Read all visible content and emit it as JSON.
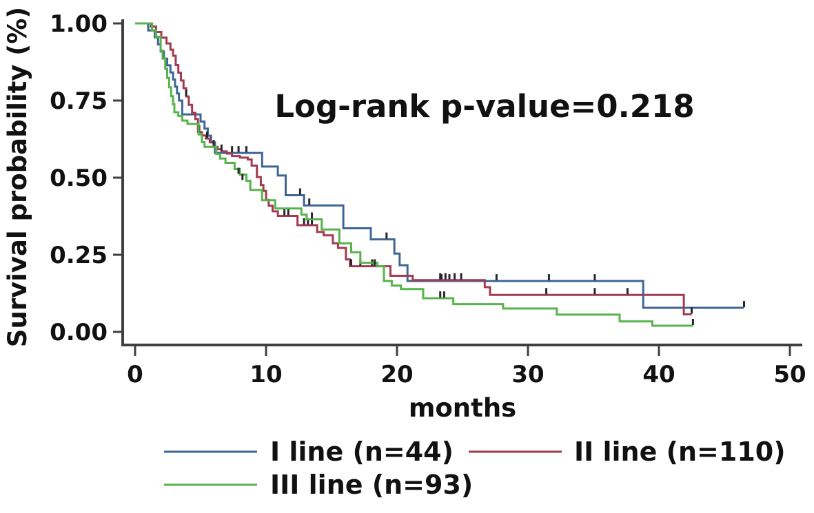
{
  "figure": {
    "kind": "kaplan-meier-survival-plot",
    "background": "#ffffff",
    "axis_color": "#3f3f3f",
    "text_color": "#111111",
    "censor_tick_color": "#26262b"
  },
  "chart_data": {
    "type": "line",
    "subtype": "kaplan-meier-step",
    "title": "",
    "xlabel": "months",
    "ylabel": "Survival probability (%)",
    "annotation": "Log-rank p-value=0.218",
    "xlim": [
      0,
      50
    ],
    "ylim": [
      0,
      1
    ],
    "x_ticks": [
      0,
      10,
      20,
      30,
      40,
      50
    ],
    "y_ticks": [
      "1.00",
      "0.75",
      "0.50",
      "0.25",
      "0.00"
    ],
    "y_tick_values": [
      1.0,
      0.75,
      0.5,
      0.25,
      0.0
    ],
    "grid": false,
    "legend_position": "bottom",
    "series": [
      {
        "name": "I line (n=44)",
        "n": 44,
        "color": "#3e6695",
        "steps": [
          [
            0,
            1
          ],
          [
            1.0,
            0.977
          ],
          [
            1.5,
            0.955
          ],
          [
            1.75,
            0.932
          ],
          [
            1.95,
            0.909
          ],
          [
            2.2,
            0.886
          ],
          [
            2.45,
            0.864
          ],
          [
            2.7,
            0.841
          ],
          [
            2.9,
            0.818
          ],
          [
            3.05,
            0.795
          ],
          [
            3.2,
            0.773
          ],
          [
            3.35,
            0.75
          ],
          [
            3.6,
            0.705
          ],
          [
            5.0,
            0.682
          ],
          [
            5.3,
            0.659
          ],
          [
            5.55,
            0.636
          ],
          [
            5.8,
            0.614
          ],
          [
            6.1,
            0.58
          ],
          [
            9.7,
            0.536
          ],
          [
            10.9,
            0.507
          ],
          [
            11.5,
            0.443
          ],
          [
            12.9,
            0.41
          ],
          [
            15.9,
            0.336
          ],
          [
            18.0,
            0.3
          ],
          [
            19.8,
            0.254
          ],
          [
            20.2,
            0.216
          ],
          [
            20.8,
            0.165
          ],
          [
            38.8,
            0.078
          ],
          [
            46.5,
            0.078
          ]
        ],
        "censor_marks": [
          [
            7.4,
            0.58
          ],
          [
            7.9,
            0.58
          ],
          [
            8.5,
            0.58
          ],
          [
            12.6,
            0.443
          ],
          [
            13.3,
            0.41
          ],
          [
            19.2,
            0.3
          ],
          [
            23.4,
            0.165
          ],
          [
            24.0,
            0.165
          ],
          [
            27.6,
            0.165
          ],
          [
            31.6,
            0.165
          ],
          [
            35.1,
            0.165
          ],
          [
            46.5,
            0.078
          ]
        ]
      },
      {
        "name": "II line (n=110)",
        "n": 110,
        "color": "#a23b50",
        "steps": [
          [
            0,
            1
          ],
          [
            1.2,
            0.99
          ],
          [
            1.6,
            0.972
          ],
          [
            2.0,
            0.954
          ],
          [
            2.4,
            0.935
          ],
          [
            2.7,
            0.915
          ],
          [
            2.9,
            0.895
          ],
          [
            3.1,
            0.865
          ],
          [
            3.3,
            0.84
          ],
          [
            3.5,
            0.815
          ],
          [
            3.7,
            0.79
          ],
          [
            3.9,
            0.763
          ],
          [
            4.1,
            0.736
          ],
          [
            4.35,
            0.71
          ],
          [
            4.6,
            0.69
          ],
          [
            4.8,
            0.648
          ],
          [
            5.1,
            0.637
          ],
          [
            5.4,
            0.627
          ],
          [
            5.7,
            0.615
          ],
          [
            6.0,
            0.6
          ],
          [
            6.3,
            0.592
          ],
          [
            6.6,
            0.585
          ],
          [
            7.0,
            0.578
          ],
          [
            7.4,
            0.57
          ],
          [
            8.0,
            0.565
          ],
          [
            8.6,
            0.559
          ],
          [
            8.9,
            0.539
          ],
          [
            9.3,
            0.502
          ],
          [
            9.6,
            0.476
          ],
          [
            9.8,
            0.457
          ],
          [
            10.0,
            0.428
          ],
          [
            10.2,
            0.409
          ],
          [
            10.5,
            0.391
          ],
          [
            10.9,
            0.376
          ],
          [
            12.4,
            0.346
          ],
          [
            13.9,
            0.324
          ],
          [
            14.4,
            0.313
          ],
          [
            15.1,
            0.287
          ],
          [
            15.5,
            0.272
          ],
          [
            16.1,
            0.235
          ],
          [
            16.4,
            0.213
          ],
          [
            19.5,
            0.182
          ],
          [
            21.2,
            0.168
          ],
          [
            26.7,
            0.145
          ],
          [
            27.1,
            0.12
          ],
          [
            41.9,
            0.057
          ],
          [
            42.5,
            0.057
          ]
        ],
        "censor_marks": [
          [
            3.9,
            0.763
          ],
          [
            4.9,
            0.648
          ],
          [
            5.5,
            0.627
          ],
          [
            6.0,
            0.6
          ],
          [
            6.6,
            0.585
          ],
          [
            11.4,
            0.376
          ],
          [
            11.7,
            0.376
          ],
          [
            12.9,
            0.346
          ],
          [
            13.2,
            0.346
          ],
          [
            13.5,
            0.346
          ],
          [
            16.5,
            0.213
          ],
          [
            17.2,
            0.213
          ],
          [
            18.1,
            0.213
          ],
          [
            23.3,
            0.168
          ],
          [
            23.7,
            0.168
          ],
          [
            24.4,
            0.168
          ],
          [
            24.9,
            0.168
          ],
          [
            31.4,
            0.12
          ],
          [
            35.1,
            0.12
          ],
          [
            37.6,
            0.12
          ],
          [
            42.5,
            0.057
          ]
        ]
      },
      {
        "name": "III line (n=93)",
        "n": 93,
        "color": "#57b34c",
        "steps": [
          [
            0,
            1
          ],
          [
            1.3,
            0.978
          ],
          [
            1.6,
            0.957
          ],
          [
            1.95,
            0.912
          ],
          [
            2.1,
            0.886
          ],
          [
            2.3,
            0.853
          ],
          [
            2.45,
            0.823
          ],
          [
            2.6,
            0.793
          ],
          [
            2.75,
            0.764
          ],
          [
            2.9,
            0.738
          ],
          [
            3.0,
            0.712
          ],
          [
            3.3,
            0.7
          ],
          [
            3.6,
            0.685
          ],
          [
            4.0,
            0.674
          ],
          [
            4.85,
            0.64
          ],
          [
            5.1,
            0.615
          ],
          [
            5.3,
            0.6
          ],
          [
            6.2,
            0.577
          ],
          [
            6.5,
            0.562
          ],
          [
            6.9,
            0.548
          ],
          [
            7.6,
            0.528
          ],
          [
            8.0,
            0.51
          ],
          [
            8.5,
            0.49
          ],
          [
            8.8,
            0.46
          ],
          [
            9.7,
            0.427
          ],
          [
            10.7,
            0.4
          ],
          [
            12.7,
            0.38
          ],
          [
            13.1,
            0.365
          ],
          [
            14.25,
            0.332
          ],
          [
            15.6,
            0.287
          ],
          [
            16.5,
            0.258
          ],
          [
            17.2,
            0.224
          ],
          [
            18.5,
            0.213
          ],
          [
            19.0,
            0.165
          ],
          [
            19.6,
            0.15
          ],
          [
            20.3,
            0.139
          ],
          [
            22.0,
            0.109
          ],
          [
            24.3,
            0.09
          ],
          [
            28.1,
            0.076
          ],
          [
            32.2,
            0.056
          ],
          [
            37.0,
            0.034
          ],
          [
            39.5,
            0.02
          ],
          [
            42.6,
            0.02
          ]
        ],
        "censor_marks": [
          [
            7.9,
            0.51
          ],
          [
            8.2,
            0.49
          ],
          [
            13.5,
            0.365
          ],
          [
            18.3,
            0.213
          ],
          [
            23.3,
            0.109
          ],
          [
            23.6,
            0.109
          ],
          [
            42.6,
            0.02
          ]
        ]
      }
    ]
  },
  "legend": {
    "items": [
      {
        "label": "I line (n=44)",
        "color": "#3e6695",
        "row": 0,
        "col": 0
      },
      {
        "label": "II line (n=110)",
        "color": "#a23b50",
        "row": 0,
        "col": 1
      },
      {
        "label": "III line (n=93)",
        "color": "#57b34c",
        "row": 1,
        "col": 0
      }
    ]
  }
}
